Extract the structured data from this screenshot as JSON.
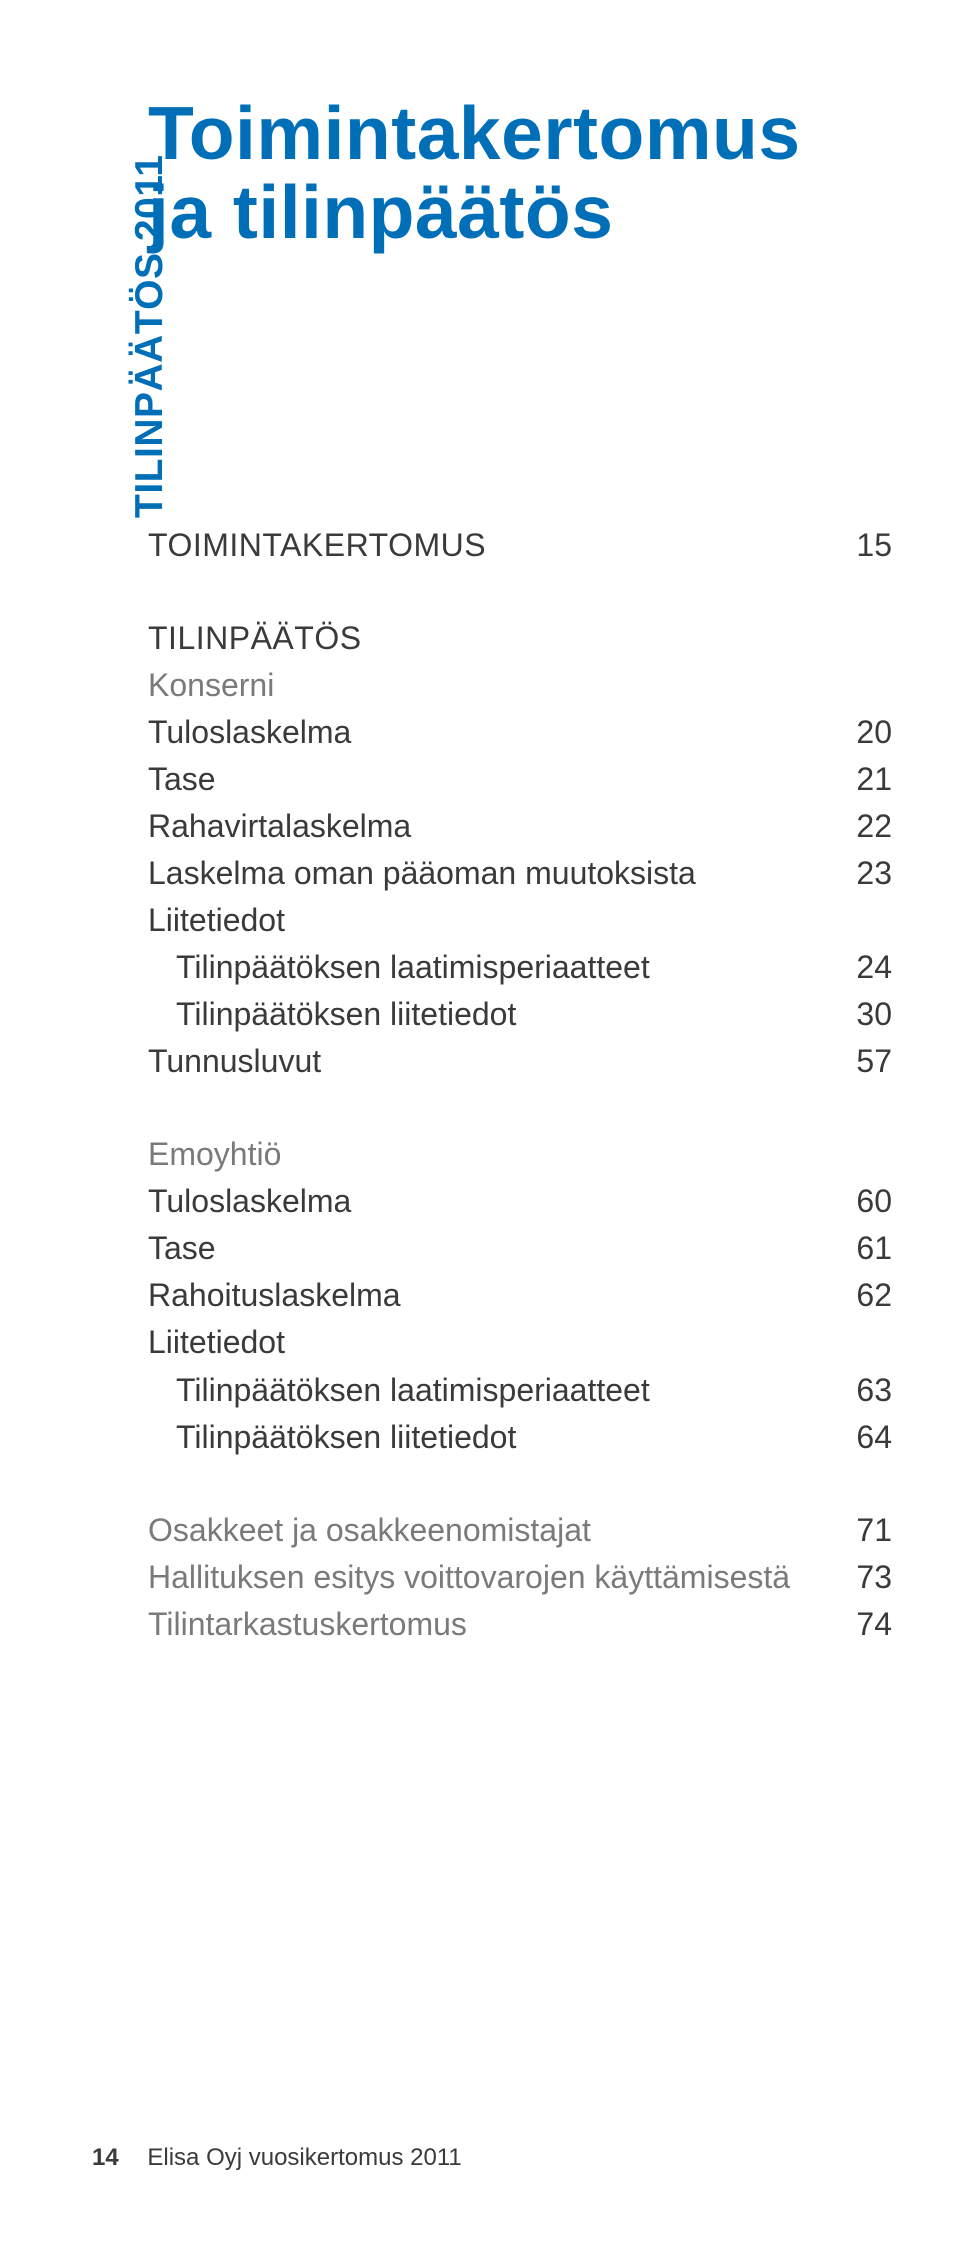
{
  "sidebar": {
    "label": "TILINPÄÄTÖS 2011"
  },
  "title": {
    "line1": "Toimintakertomus",
    "line2": "ja tilinpäätös"
  },
  "toc": {
    "block1": [
      {
        "label": "Toimintakertomus",
        "page": "15",
        "caps": true
      }
    ],
    "block2_header": {
      "label": "Tilinpäätös",
      "caps": true
    },
    "block2_sub1": {
      "label": "Konserni"
    },
    "block2_items1": [
      {
        "label": "Tuloslaskelma",
        "page": "20"
      },
      {
        "label": "Tase",
        "page": "21"
      },
      {
        "label": "Rahavirtalaskelma",
        "page": "22"
      },
      {
        "label": "Laskelma oman pääoman muutoksista",
        "page": "23"
      },
      {
        "label": "Liitetiedot",
        "page": ""
      },
      {
        "label": "Tilinpäätöksen laatimisperiaatteet",
        "page": "24",
        "indent": true
      },
      {
        "label": "Tilinpäätöksen liitetiedot",
        "page": "30",
        "indent": true
      },
      {
        "label": "Tunnusluvut",
        "page": "57"
      }
    ],
    "block2_sub2": {
      "label": "Emoyhtiö"
    },
    "block2_items2": [
      {
        "label": "Tuloslaskelma",
        "page": "60"
      },
      {
        "label": "Tase",
        "page": "61"
      },
      {
        "label": "Rahoituslaskelma",
        "page": "62"
      },
      {
        "label": "Liitetiedot",
        "page": ""
      },
      {
        "label": "Tilinpäätöksen laatimisperiaatteet",
        "page": "63",
        "indent": true
      },
      {
        "label": "Tilinpäätöksen liitetiedot",
        "page": "64",
        "indent": true
      }
    ],
    "block3": [
      {
        "label": "Osakkeet ja osakkeenomistajat",
        "page": "71"
      },
      {
        "label": "Hallituksen esitys voittovarojen käyttämisestä",
        "page": "73"
      },
      {
        "label": "Tilintarkastuskertomus",
        "page": "74"
      }
    ]
  },
  "footer": {
    "page": "14",
    "text": "Elisa Oyj vuosikertomus 2011"
  }
}
